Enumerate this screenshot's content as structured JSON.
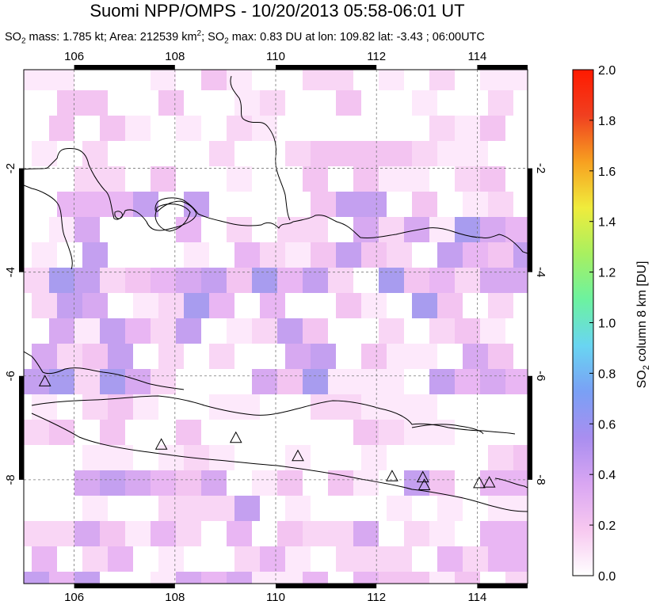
{
  "header": {
    "title": "Suomi NPP/OMPS - 10/20/2013 05:58-06:01 UT",
    "so2_mass_label": "SO",
    "so2_mass_text": " mass: 1.785 kt; Area: 212539 km",
    "area_suffix": "; SO",
    "so2_max_text": " max: 0.83 DU at lon: 109.82 lat: -3.43 ; 06:00UTC",
    "sub2": "2",
    "sup2": "2"
  },
  "map": {
    "lon_ticks": [
      "106",
      "108",
      "110",
      "112",
      "114"
    ],
    "lon_values": [
      106,
      108,
      110,
      112,
      114
    ],
    "lat_ticks": [
      "-2",
      "-4",
      "-6",
      "-8"
    ],
    "lat_values": [
      -2,
      -4,
      -6,
      -8
    ],
    "lon_range": [
      105,
      115
    ],
    "lat_range": [
      -10,
      -0.1
    ],
    "grid": "dashed",
    "volcano_marker": "triangle-outline",
    "volcanoes": [
      {
        "lon": 105.42,
        "lat": -6.1
      },
      {
        "lon": 107.73,
        "lat": -7.32
      },
      {
        "lon": 109.21,
        "lat": -7.19
      },
      {
        "lon": 110.44,
        "lat": -7.54
      },
      {
        "lon": 112.31,
        "lat": -7.93
      },
      {
        "lon": 112.92,
        "lat": -7.95
      },
      {
        "lon": 112.95,
        "lat": -8.1
      },
      {
        "lon": 114.04,
        "lat": -8.06
      },
      {
        "lon": 114.24,
        "lat": -8.05
      }
    ]
  },
  "colorbar": {
    "ticks": [
      "0.0",
      "0.2",
      "0.4",
      "0.6",
      "0.8",
      "1.0",
      "1.2",
      "1.4",
      "1.6",
      "1.8",
      "2.0"
    ],
    "range": [
      0,
      2.0
    ],
    "label_main": "SO",
    "label_sub": "2",
    "label_rest": " column 8 km [DU]",
    "colors": [
      "#ffffff",
      "#f7c8f0",
      "#d9a6f2",
      "#a98ef0",
      "#7aa0f5",
      "#69d5f2",
      "#6cf2a0",
      "#a8f060",
      "#f0ec3c",
      "#f7a020",
      "#f04020",
      "#ff1a00"
    ]
  }
}
